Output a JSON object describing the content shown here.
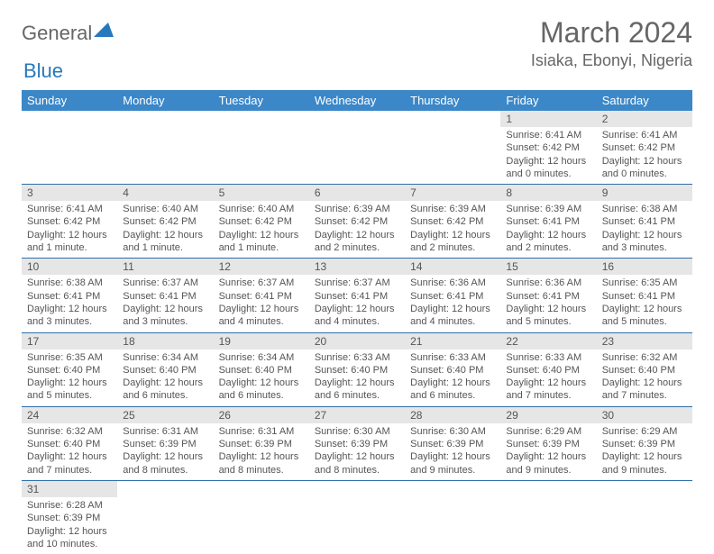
{
  "brand": {
    "general": "General",
    "blue": "Blue"
  },
  "title": "March 2024",
  "location": "Isiaka, Ebonyi, Nigeria",
  "colors": {
    "header_bg": "#3b87c8",
    "header_text": "#ffffff",
    "row_divider": "#2f6fa8",
    "daynum_bg": "#e6e6e6",
    "text": "#555555",
    "accent": "#2878bd",
    "page_bg": "#ffffff"
  },
  "typography": {
    "title_fontsize": 32,
    "location_fontsize": 18,
    "header_fontsize": 13,
    "daynum_fontsize": 12,
    "body_fontsize": 11
  },
  "layout": {
    "columns": 7,
    "rows": 6
  },
  "weekdays": [
    "Sunday",
    "Monday",
    "Tuesday",
    "Wednesday",
    "Thursday",
    "Friday",
    "Saturday"
  ],
  "weeks": [
    [
      null,
      null,
      null,
      null,
      null,
      {
        "n": "1",
        "sunrise": "Sunrise: 6:41 AM",
        "sunset": "Sunset: 6:42 PM",
        "daylight": "Daylight: 12 hours and 0 minutes."
      },
      {
        "n": "2",
        "sunrise": "Sunrise: 6:41 AM",
        "sunset": "Sunset: 6:42 PM",
        "daylight": "Daylight: 12 hours and 0 minutes."
      }
    ],
    [
      {
        "n": "3",
        "sunrise": "Sunrise: 6:41 AM",
        "sunset": "Sunset: 6:42 PM",
        "daylight": "Daylight: 12 hours and 1 minute."
      },
      {
        "n": "4",
        "sunrise": "Sunrise: 6:40 AM",
        "sunset": "Sunset: 6:42 PM",
        "daylight": "Daylight: 12 hours and 1 minute."
      },
      {
        "n": "5",
        "sunrise": "Sunrise: 6:40 AM",
        "sunset": "Sunset: 6:42 PM",
        "daylight": "Daylight: 12 hours and 1 minute."
      },
      {
        "n": "6",
        "sunrise": "Sunrise: 6:39 AM",
        "sunset": "Sunset: 6:42 PM",
        "daylight": "Daylight: 12 hours and 2 minutes."
      },
      {
        "n": "7",
        "sunrise": "Sunrise: 6:39 AM",
        "sunset": "Sunset: 6:42 PM",
        "daylight": "Daylight: 12 hours and 2 minutes."
      },
      {
        "n": "8",
        "sunrise": "Sunrise: 6:39 AM",
        "sunset": "Sunset: 6:41 PM",
        "daylight": "Daylight: 12 hours and 2 minutes."
      },
      {
        "n": "9",
        "sunrise": "Sunrise: 6:38 AM",
        "sunset": "Sunset: 6:41 PM",
        "daylight": "Daylight: 12 hours and 3 minutes."
      }
    ],
    [
      {
        "n": "10",
        "sunrise": "Sunrise: 6:38 AM",
        "sunset": "Sunset: 6:41 PM",
        "daylight": "Daylight: 12 hours and 3 minutes."
      },
      {
        "n": "11",
        "sunrise": "Sunrise: 6:37 AM",
        "sunset": "Sunset: 6:41 PM",
        "daylight": "Daylight: 12 hours and 3 minutes."
      },
      {
        "n": "12",
        "sunrise": "Sunrise: 6:37 AM",
        "sunset": "Sunset: 6:41 PM",
        "daylight": "Daylight: 12 hours and 4 minutes."
      },
      {
        "n": "13",
        "sunrise": "Sunrise: 6:37 AM",
        "sunset": "Sunset: 6:41 PM",
        "daylight": "Daylight: 12 hours and 4 minutes."
      },
      {
        "n": "14",
        "sunrise": "Sunrise: 6:36 AM",
        "sunset": "Sunset: 6:41 PM",
        "daylight": "Daylight: 12 hours and 4 minutes."
      },
      {
        "n": "15",
        "sunrise": "Sunrise: 6:36 AM",
        "sunset": "Sunset: 6:41 PM",
        "daylight": "Daylight: 12 hours and 5 minutes."
      },
      {
        "n": "16",
        "sunrise": "Sunrise: 6:35 AM",
        "sunset": "Sunset: 6:41 PM",
        "daylight": "Daylight: 12 hours and 5 minutes."
      }
    ],
    [
      {
        "n": "17",
        "sunrise": "Sunrise: 6:35 AM",
        "sunset": "Sunset: 6:40 PM",
        "daylight": "Daylight: 12 hours and 5 minutes."
      },
      {
        "n": "18",
        "sunrise": "Sunrise: 6:34 AM",
        "sunset": "Sunset: 6:40 PM",
        "daylight": "Daylight: 12 hours and 6 minutes."
      },
      {
        "n": "19",
        "sunrise": "Sunrise: 6:34 AM",
        "sunset": "Sunset: 6:40 PM",
        "daylight": "Daylight: 12 hours and 6 minutes."
      },
      {
        "n": "20",
        "sunrise": "Sunrise: 6:33 AM",
        "sunset": "Sunset: 6:40 PM",
        "daylight": "Daylight: 12 hours and 6 minutes."
      },
      {
        "n": "21",
        "sunrise": "Sunrise: 6:33 AM",
        "sunset": "Sunset: 6:40 PM",
        "daylight": "Daylight: 12 hours and 6 minutes."
      },
      {
        "n": "22",
        "sunrise": "Sunrise: 6:33 AM",
        "sunset": "Sunset: 6:40 PM",
        "daylight": "Daylight: 12 hours and 7 minutes."
      },
      {
        "n": "23",
        "sunrise": "Sunrise: 6:32 AM",
        "sunset": "Sunset: 6:40 PM",
        "daylight": "Daylight: 12 hours and 7 minutes."
      }
    ],
    [
      {
        "n": "24",
        "sunrise": "Sunrise: 6:32 AM",
        "sunset": "Sunset: 6:40 PM",
        "daylight": "Daylight: 12 hours and 7 minutes."
      },
      {
        "n": "25",
        "sunrise": "Sunrise: 6:31 AM",
        "sunset": "Sunset: 6:39 PM",
        "daylight": "Daylight: 12 hours and 8 minutes."
      },
      {
        "n": "26",
        "sunrise": "Sunrise: 6:31 AM",
        "sunset": "Sunset: 6:39 PM",
        "daylight": "Daylight: 12 hours and 8 minutes."
      },
      {
        "n": "27",
        "sunrise": "Sunrise: 6:30 AM",
        "sunset": "Sunset: 6:39 PM",
        "daylight": "Daylight: 12 hours and 8 minutes."
      },
      {
        "n": "28",
        "sunrise": "Sunrise: 6:30 AM",
        "sunset": "Sunset: 6:39 PM",
        "daylight": "Daylight: 12 hours and 9 minutes."
      },
      {
        "n": "29",
        "sunrise": "Sunrise: 6:29 AM",
        "sunset": "Sunset: 6:39 PM",
        "daylight": "Daylight: 12 hours and 9 minutes."
      },
      {
        "n": "30",
        "sunrise": "Sunrise: 6:29 AM",
        "sunset": "Sunset: 6:39 PM",
        "daylight": "Daylight: 12 hours and 9 minutes."
      }
    ],
    [
      {
        "n": "31",
        "sunrise": "Sunrise: 6:28 AM",
        "sunset": "Sunset: 6:39 PM",
        "daylight": "Daylight: 12 hours and 10 minutes."
      },
      null,
      null,
      null,
      null,
      null,
      null
    ]
  ]
}
